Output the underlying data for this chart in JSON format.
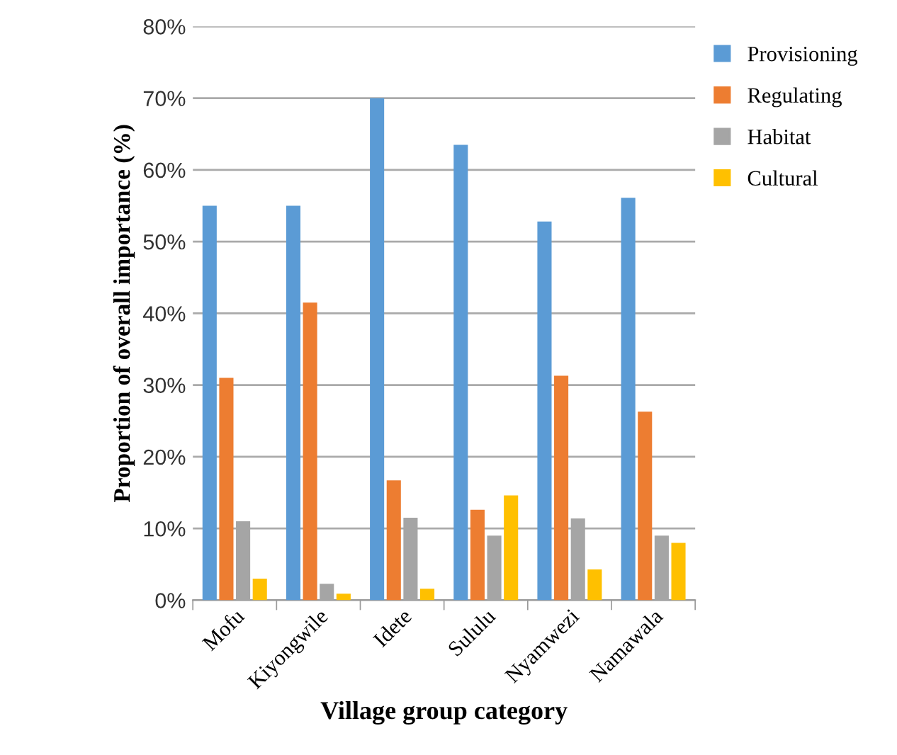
{
  "chart_data": {
    "type": "bar",
    "xlabel": "Village group category",
    "ylabel": "Proportion of overall importance (%)",
    "categories": [
      "Mofu",
      "Kiyongwile",
      "Idete",
      "Sululu",
      "Nyamwezi",
      "Namawala"
    ],
    "series": [
      {
        "name": "Provisioning",
        "color": "#5b9bd5",
        "values": [
          55,
          55,
          70,
          63.5,
          52.8,
          56.1
        ]
      },
      {
        "name": "Regulating",
        "color": "#ed7d31",
        "values": [
          31,
          41.5,
          16.7,
          12.6,
          31.3,
          26.3
        ]
      },
      {
        "name": "Habitat",
        "color": "#a5a5a5",
        "values": [
          11,
          2.3,
          11.5,
          9,
          11.4,
          9
        ]
      },
      {
        "name": "Cultural",
        "color": "#ffc000",
        "values": [
          3,
          0.9,
          1.6,
          14.6,
          4.3,
          8
        ]
      }
    ],
    "ylim": [
      0,
      80
    ],
    "yticks": [
      {
        "value": 0,
        "label": "0%"
      },
      {
        "value": 10,
        "label": "10%"
      },
      {
        "value": 20,
        "label": "20%"
      },
      {
        "value": 30,
        "label": "30%"
      },
      {
        "value": 40,
        "label": "40%"
      },
      {
        "value": 50,
        "label": "50%"
      },
      {
        "value": 60,
        "label": "60%"
      },
      {
        "value": 70,
        "label": "70%"
      },
      {
        "value": 80,
        "label": "80%"
      }
    ],
    "grid": "y",
    "legend": "top right"
  }
}
